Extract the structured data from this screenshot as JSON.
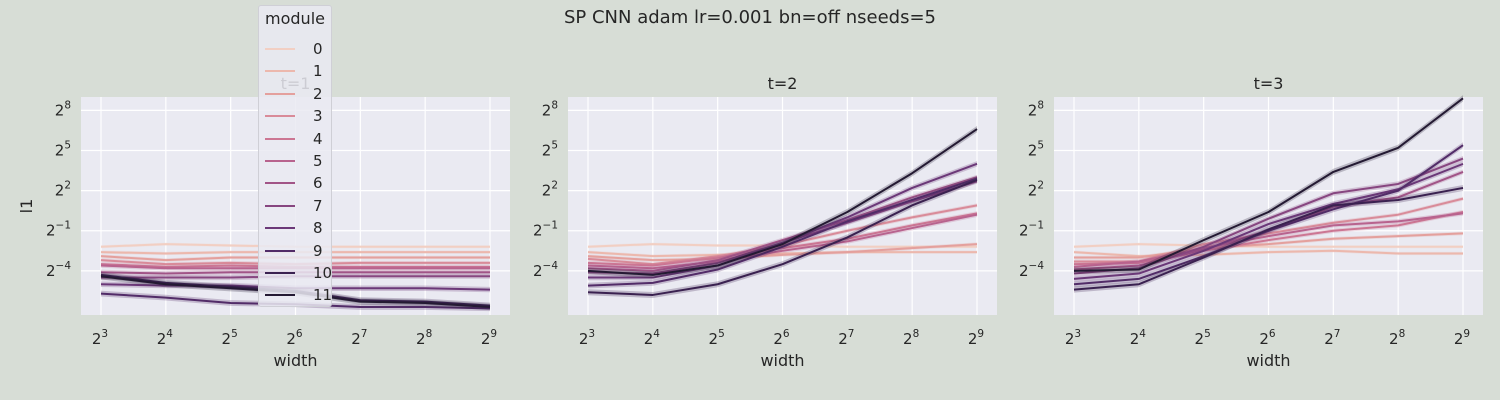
{
  "figure_title": "SP CNN adam lr=0.001 bn=off nseeds=5",
  "legend": {
    "title": "module",
    "entries": [
      "0",
      "1",
      "2",
      "3",
      "4",
      "5",
      "6",
      "7",
      "8",
      "9",
      "10",
      "11"
    ]
  },
  "colors": [
    "#f2cfc3",
    "#ecb8ad",
    "#e4a09d",
    "#d98b99",
    "#cc7693",
    "#b8638e",
    "#a15487",
    "#874680",
    "#6b3878",
    "#522c68",
    "#3a2150",
    "#241a33"
  ],
  "chart_data": [
    {
      "type": "line",
      "title": "t=1",
      "xlabel": "width",
      "ylabel": "l1",
      "x": [
        3,
        4,
        5,
        6,
        7,
        8,
        9
      ],
      "x_tick_labels": [
        "3",
        "4",
        "5",
        "6",
        "7",
        "8",
        "9"
      ],
      "x_scale": "log2",
      "y_scale": "log2",
      "y_tick_exponents": [
        -4,
        -1,
        2,
        5,
        8
      ],
      "ylim_log2": [
        -7.3,
        9.0
      ],
      "grid": true,
      "series": [
        {
          "name": "0",
          "log2_values": [
            -2.2,
            -2.0,
            -2.1,
            -2.2,
            -2.2,
            -2.2,
            -2.2
          ]
        },
        {
          "name": "1",
          "log2_values": [
            -2.6,
            -2.7,
            -2.6,
            -2.6,
            -2.6,
            -2.6,
            -2.6
          ]
        },
        {
          "name": "2",
          "log2_values": [
            -2.9,
            -3.2,
            -3.0,
            -3.0,
            -3.0,
            -3.0,
            -3.0
          ]
        },
        {
          "name": "3",
          "log2_values": [
            -3.2,
            -3.5,
            -3.4,
            -3.5,
            -3.4,
            -3.4,
            -3.4
          ]
        },
        {
          "name": "4",
          "log2_values": [
            -3.5,
            -3.7,
            -3.6,
            -3.7,
            -3.7,
            -3.7,
            -3.7
          ]
        },
        {
          "name": "5",
          "log2_values": [
            -3.6,
            -3.8,
            -3.8,
            -3.8,
            -3.8,
            -3.8,
            -3.8
          ]
        },
        {
          "name": "6",
          "log2_values": [
            -4.1,
            -4.2,
            -4.1,
            -4.1,
            -4.1,
            -4.1,
            -4.1
          ]
        },
        {
          "name": "7",
          "log2_values": [
            -4.5,
            -4.5,
            -4.5,
            -4.4,
            -4.4,
            -4.4,
            -4.4
          ]
        },
        {
          "name": "8",
          "log2_values": [
            -5.0,
            -5.1,
            -5.1,
            -5.3,
            -5.3,
            -5.3,
            -5.4
          ]
        },
        {
          "name": "9",
          "log2_values": [
            -5.7,
            -6.0,
            -6.4,
            -6.5,
            -6.7,
            -6.7,
            -6.8
          ]
        },
        {
          "name": "10",
          "log2_values": [
            -4.3,
            -4.9,
            -5.2,
            -5.5,
            -6.2,
            -6.3,
            -6.6
          ]
        },
        {
          "name": "11",
          "log2_values": [
            -4.4,
            -5.0,
            -5.3,
            -5.6,
            -6.3,
            -6.4,
            -6.7
          ]
        }
      ]
    },
    {
      "type": "line",
      "title": "t=2",
      "xlabel": "width",
      "ylabel": "",
      "x": [
        3,
        4,
        5,
        6,
        7,
        8,
        9
      ],
      "x_tick_labels": [
        "3",
        "4",
        "5",
        "6",
        "7",
        "8",
        "9"
      ],
      "x_scale": "log2",
      "y_scale": "log2",
      "y_tick_exponents": [
        -4,
        -1,
        2,
        5,
        8
      ],
      "ylim_log2": [
        -7.3,
        9.0
      ],
      "grid": true,
      "series": [
        {
          "name": "0",
          "log2_values": [
            -2.2,
            -2.0,
            -2.1,
            -2.1,
            -2.2,
            -2.2,
            -2.2
          ]
        },
        {
          "name": "1",
          "log2_values": [
            -2.6,
            -2.9,
            -2.8,
            -2.7,
            -2.6,
            -2.6,
            -2.6
          ]
        },
        {
          "name": "2",
          "log2_values": [
            -2.9,
            -3.2,
            -3.1,
            -2.8,
            -2.6,
            -2.3,
            -2.0
          ]
        },
        {
          "name": "3",
          "log2_values": [
            -3.1,
            -3.5,
            -2.9,
            -2.1,
            -1.0,
            0.0,
            0.9
          ]
        },
        {
          "name": "4",
          "log2_values": [
            -3.4,
            -3.6,
            -3.0,
            -2.3,
            -1.6,
            -0.6,
            0.3
          ]
        },
        {
          "name": "5",
          "log2_values": [
            -3.6,
            -3.8,
            -3.3,
            -2.5,
            -1.8,
            -0.8,
            0.2
          ]
        },
        {
          "name": "6",
          "log2_values": [
            -3.8,
            -4.0,
            -3.2,
            -1.7,
            -0.2,
            1.5,
            3.0
          ]
        },
        {
          "name": "7",
          "log2_values": [
            -4.1,
            -4.2,
            -3.4,
            -1.9,
            -0.4,
            1.2,
            2.7
          ]
        },
        {
          "name": "8",
          "log2_values": [
            -4.5,
            -4.5,
            -3.6,
            -1.9,
            0.0,
            2.2,
            4.0
          ]
        },
        {
          "name": "9",
          "log2_values": [
            -5.1,
            -4.9,
            -3.9,
            -2.2,
            -0.3,
            1.3,
            2.9
          ]
        },
        {
          "name": "10",
          "log2_values": [
            -5.6,
            -5.8,
            -5.0,
            -3.5,
            -1.5,
            0.9,
            2.8
          ]
        },
        {
          "name": "11",
          "log2_values": [
            -4.0,
            -4.3,
            -3.6,
            -2.0,
            0.4,
            3.3,
            6.6
          ]
        }
      ]
    },
    {
      "type": "line",
      "title": "t=3",
      "xlabel": "width",
      "ylabel": "",
      "x": [
        3,
        4,
        5,
        6,
        7,
        8,
        9
      ],
      "x_tick_labels": [
        "3",
        "4",
        "5",
        "6",
        "7",
        "8",
        "9"
      ],
      "x_scale": "log2",
      "y_scale": "log2",
      "y_tick_exponents": [
        -4,
        -1,
        2,
        5,
        8
      ],
      "ylim_log2": [
        -7.3,
        9.0
      ],
      "grid": true,
      "series": [
        {
          "name": "0",
          "log2_values": [
            -2.2,
            -2.0,
            -2.1,
            -2.2,
            -2.2,
            -2.2,
            -2.2
          ]
        },
        {
          "name": "1",
          "log2_values": [
            -2.6,
            -2.9,
            -2.8,
            -2.6,
            -2.5,
            -2.7,
            -2.7
          ]
        },
        {
          "name": "2",
          "log2_values": [
            -3.0,
            -3.0,
            -2.3,
            -2.0,
            -1.6,
            -1.4,
            -1.2
          ]
        },
        {
          "name": "3",
          "log2_values": [
            -3.3,
            -3.3,
            -2.0,
            -1.2,
            -0.4,
            0.2,
            1.4
          ]
        },
        {
          "name": "4",
          "log2_values": [
            -3.5,
            -3.4,
            -2.5,
            -1.7,
            -1.0,
            -0.6,
            0.4
          ]
        },
        {
          "name": "5",
          "log2_values": [
            -3.7,
            -3.3,
            -2.3,
            -1.4,
            -0.6,
            -0.3,
            0.3
          ]
        },
        {
          "name": "6",
          "log2_values": [
            -3.9,
            -3.6,
            -2.4,
            -1.0,
            0.8,
            1.5,
            3.4
          ]
        },
        {
          "name": "7",
          "log2_values": [
            -4.2,
            -3.8,
            -2.2,
            -0.1,
            1.8,
            2.5,
            4.4
          ]
        },
        {
          "name": "8",
          "log2_values": [
            -4.6,
            -4.2,
            -2.5,
            -0.5,
            1.0,
            2.1,
            4.0
          ]
        },
        {
          "name": "9",
          "log2_values": [
            -5.0,
            -4.6,
            -2.9,
            -1.0,
            0.6,
            2.0,
            5.4
          ]
        },
        {
          "name": "10",
          "log2_values": [
            -5.4,
            -5.0,
            -3.0,
            -0.9,
            0.9,
            1.3,
            2.2
          ]
        },
        {
          "name": "11",
          "log2_values": [
            -4.0,
            -3.9,
            -1.7,
            0.4,
            3.4,
            5.2,
            8.9
          ]
        }
      ]
    }
  ]
}
